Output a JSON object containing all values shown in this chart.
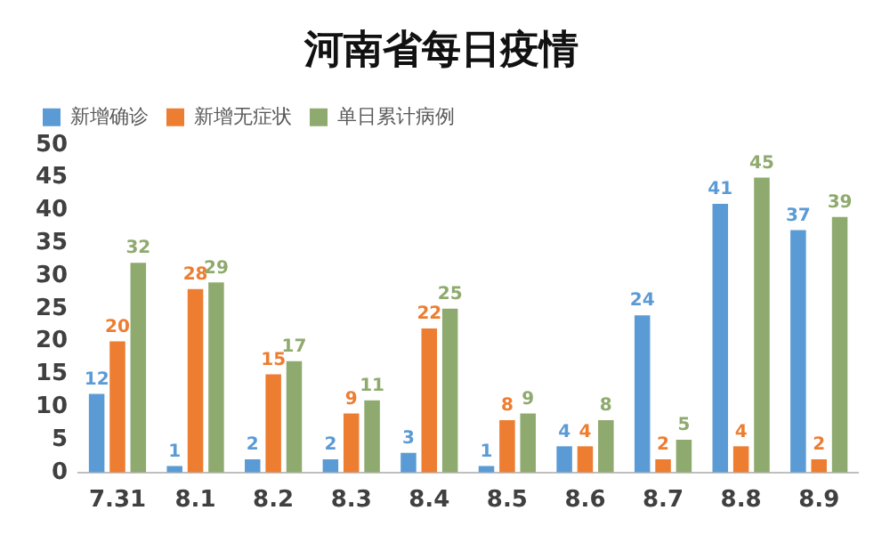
{
  "chart_data": {
    "type": "bar",
    "title": "河南省每日疫情",
    "categories": [
      "7.31",
      "8.1",
      "8.2",
      "8.3",
      "8.4",
      "8.5",
      "8.6",
      "8.7",
      "8.8",
      "8.9"
    ],
    "series": [
      {
        "name": "新增确诊",
        "color": "#5b9bd5",
        "values": [
          12,
          1,
          2,
          2,
          3,
          1,
          4,
          24,
          41,
          37
        ]
      },
      {
        "name": "新增无症状",
        "color": "#ed7d31",
        "values": [
          20,
          28,
          15,
          9,
          22,
          8,
          4,
          2,
          4,
          2
        ]
      },
      {
        "name": "单日累计病例",
        "color": "#8faa6e",
        "values": [
          32,
          29,
          17,
          11,
          25,
          9,
          8,
          5,
          45,
          39
        ]
      }
    ],
    "ylim": [
      0,
      50
    ],
    "yticks": [
      0,
      5,
      10,
      15,
      20,
      25,
      30,
      35,
      40,
      45,
      50
    ],
    "grid": false,
    "legend": "top left",
    "data_labels": true
  }
}
